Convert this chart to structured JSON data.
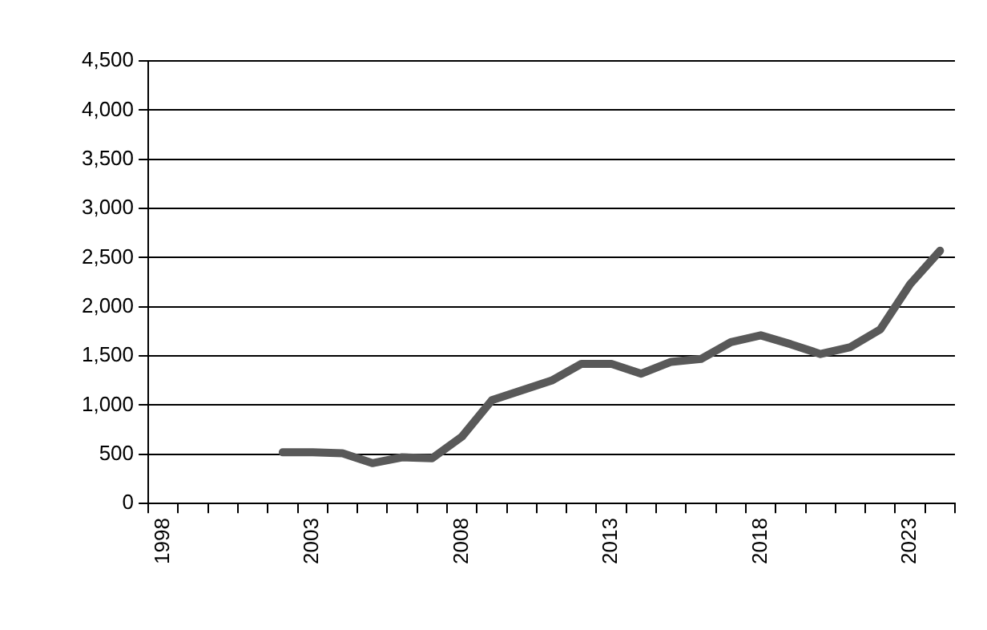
{
  "chart_data": {
    "type": "line",
    "categories": [
      "1998",
      null,
      null,
      null,
      null,
      "2003",
      null,
      null,
      null,
      null,
      "2008",
      null,
      null,
      null,
      null,
      "2013",
      null,
      null,
      null,
      null,
      "2018",
      null,
      null,
      null,
      null,
      "2023",
      null
    ],
    "series": [
      {
        "color": "#595959",
        "values": [
          null,
          null,
          null,
          null,
          520,
          520,
          510,
          410,
          470,
          460,
          680,
          1050,
          1150,
          1250,
          1420,
          1420,
          1320,
          1440,
          1470,
          1640,
          1710,
          1620,
          1520,
          1590,
          1770,
          2230,
          2570
        ]
      }
    ],
    "ylim": [
      0,
      4500
    ],
    "yticks": [
      {
        "value": 0,
        "label": "0"
      },
      {
        "value": 500,
        "label": "500"
      },
      {
        "value": 1000,
        "label": "1,000"
      },
      {
        "value": 1500,
        "label": "1,500"
      },
      {
        "value": 2000,
        "label": "2,000"
      },
      {
        "value": 2500,
        "label": "2,500"
      },
      {
        "value": 3000,
        "label": "3,000"
      },
      {
        "value": 3500,
        "label": "3,500"
      },
      {
        "value": 4000,
        "label": "4,000"
      },
      {
        "value": 4500,
        "label": "4,500"
      }
    ],
    "grid": "y",
    "legend": false,
    "marker": "none",
    "line_style": "solid"
  }
}
